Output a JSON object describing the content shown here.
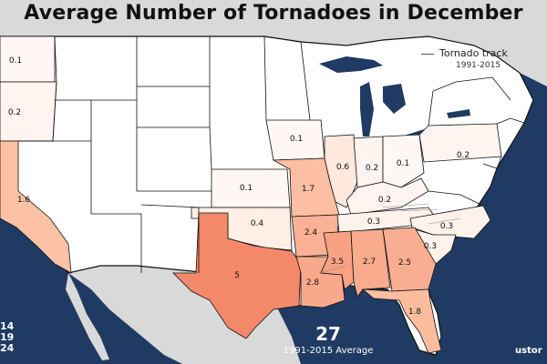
{
  "title": "Average Number of Tornadoes in December",
  "legend": {
    "track_label": "Tornado track",
    "track_years": "1991-2015"
  },
  "total": {
    "value": "27",
    "label": "1991-2015 Average"
  },
  "scale_labels": [
    "14",
    "19",
    "24"
  ],
  "credit": "ustor",
  "colors": {
    "ocean": "#1f3b63",
    "land_outside": "#d9d9d9",
    "state_fill": "#ffffff",
    "border": "#111111"
  },
  "states": [
    {
      "id": "WA",
      "value": "0.1",
      "fill": "#fff7f3"
    },
    {
      "id": "OR",
      "value": "0.2",
      "fill": "#fff4ef"
    },
    {
      "id": "CA",
      "value": "1.6",
      "fill": "#fdc1a6"
    },
    {
      "id": "KS",
      "value": "0.1",
      "fill": "#fff7f3"
    },
    {
      "id": "OK",
      "value": "0.4",
      "fill": "#ffefe7"
    },
    {
      "id": "TX",
      "value": "5",
      "fill": "#f4896a"
    },
    {
      "id": "IA",
      "value": "0.1",
      "fill": "#fff7f3"
    },
    {
      "id": "MO",
      "value": "1.7",
      "fill": "#fcbfa3"
    },
    {
      "id": "AR",
      "value": "2.4",
      "fill": "#fbb195"
    },
    {
      "id": "LA",
      "value": "2.8",
      "fill": "#f9a98b"
    },
    {
      "id": "IL",
      "value": "0.6",
      "fill": "#ffe8dc"
    },
    {
      "id": "IN",
      "value": "0.2",
      "fill": "#fff4ef"
    },
    {
      "id": "OH",
      "value": "0.1",
      "fill": "#fff7f3"
    },
    {
      "id": "PA",
      "value": "0.2",
      "fill": "#fff4ef"
    },
    {
      "id": "KY",
      "value": "0.2",
      "fill": "#fff4ef"
    },
    {
      "id": "TN",
      "value": "0.3",
      "fill": "#fff2eb"
    },
    {
      "id": "NC",
      "value": "0.3",
      "fill": "#fff2eb"
    },
    {
      "id": "SC",
      "value": "0.3",
      "fill": "#fff2eb"
    },
    {
      "id": "MS",
      "value": "3.5",
      "fill": "#f8a284"
    },
    {
      "id": "AL",
      "value": "2.7",
      "fill": "#f9ab8d"
    },
    {
      "id": "GA",
      "value": "2.5",
      "fill": "#f9ae91"
    },
    {
      "id": "FL",
      "value": "1.8",
      "fill": "#fcbd9f"
    }
  ]
}
